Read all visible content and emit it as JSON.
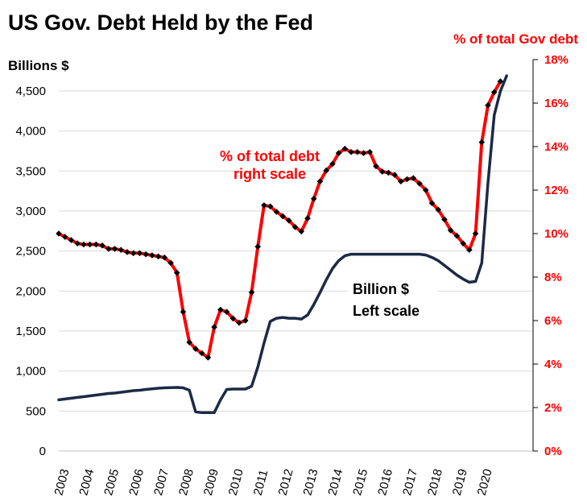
{
  "chart_data": {
    "type": "line",
    "title": "US Gov. Debt Held by the Fed",
    "ylabel_left": "Billions $",
    "ylabel_right": "% of total Gov debt",
    "ylim_left": [
      0,
      4500
    ],
    "yticks_left": [
      "0",
      "500",
      "1,000",
      "1,500",
      "2,000",
      "2,500",
      "3,000",
      "3,500",
      "4,000",
      "4,500"
    ],
    "ylim_right": [
      0,
      18
    ],
    "yticks_right": [
      "0%",
      "2%",
      "4%",
      "6%",
      "8%",
      "10%",
      "12%",
      "14%",
      "16%",
      "18%"
    ],
    "xticks": [
      "2003",
      "2004",
      "2005",
      "2006",
      "2007",
      "2008",
      "2009",
      "2010",
      "2011",
      "2012",
      "2013",
      "2014",
      "2015",
      "2016",
      "2017",
      "2018",
      "2019",
      "2020"
    ],
    "grid": "horizontal",
    "annotations": [
      {
        "lines": [
          "% of total debt",
          "right scale"
        ],
        "series": "percent"
      },
      {
        "lines": [
          "Billion $",
          "Left scale"
        ],
        "series": "billions"
      }
    ],
    "colors": {
      "percent": "#ff0000",
      "billions": "#1b2a45",
      "markers": "#000000",
      "right_axis": "#ff0000"
    },
    "series": [
      {
        "axis": "left",
        "points": [
          [
            2003.0,
            640
          ],
          [
            2003.25,
            650
          ],
          [
            2003.5,
            660
          ],
          [
            2003.75,
            670
          ],
          [
            2004.0,
            680
          ],
          [
            2004.25,
            690
          ],
          [
            2004.5,
            700
          ],
          [
            2004.75,
            710
          ],
          [
            2005.0,
            720
          ],
          [
            2005.25,
            725
          ],
          [
            2005.5,
            735
          ],
          [
            2005.75,
            745
          ],
          [
            2006.0,
            755
          ],
          [
            2006.25,
            760
          ],
          [
            2006.5,
            770
          ],
          [
            2006.75,
            778
          ],
          [
            2007.0,
            785
          ],
          [
            2007.25,
            790
          ],
          [
            2007.5,
            793
          ],
          [
            2007.75,
            795
          ],
          [
            2008.0,
            790
          ],
          [
            2008.25,
            760
          ],
          [
            2008.5,
            490
          ],
          [
            2008.75,
            480
          ],
          [
            2009.0,
            480
          ],
          [
            2009.25,
            480
          ],
          [
            2009.5,
            640
          ],
          [
            2009.75,
            770
          ],
          [
            2010.0,
            775
          ],
          [
            2010.25,
            775
          ],
          [
            2010.5,
            775
          ],
          [
            2010.75,
            810
          ],
          [
            2011.0,
            1050
          ],
          [
            2011.25,
            1350
          ],
          [
            2011.5,
            1620
          ],
          [
            2011.75,
            1660
          ],
          [
            2012.0,
            1670
          ],
          [
            2012.25,
            1660
          ],
          [
            2012.5,
            1660
          ],
          [
            2012.75,
            1650
          ],
          [
            2013.0,
            1700
          ],
          [
            2013.25,
            1830
          ],
          [
            2013.5,
            1980
          ],
          [
            2013.75,
            2140
          ],
          [
            2014.0,
            2280
          ],
          [
            2014.25,
            2380
          ],
          [
            2014.5,
            2440
          ],
          [
            2014.75,
            2460
          ],
          [
            2015.0,
            2460
          ],
          [
            2015.25,
            2460
          ],
          [
            2015.5,
            2460
          ],
          [
            2015.75,
            2460
          ],
          [
            2016.0,
            2460
          ],
          [
            2016.25,
            2460
          ],
          [
            2016.5,
            2460
          ],
          [
            2016.75,
            2460
          ],
          [
            2017.0,
            2460
          ],
          [
            2017.25,
            2460
          ],
          [
            2017.5,
            2460
          ],
          [
            2017.75,
            2450
          ],
          [
            2018.0,
            2420
          ],
          [
            2018.25,
            2380
          ],
          [
            2018.5,
            2320
          ],
          [
            2018.75,
            2260
          ],
          [
            2019.0,
            2200
          ],
          [
            2019.25,
            2150
          ],
          [
            2019.5,
            2110
          ],
          [
            2019.75,
            2120
          ],
          [
            2020.0,
            2350
          ],
          [
            2020.25,
            3350
          ],
          [
            2020.5,
            4200
          ],
          [
            2020.75,
            4500
          ],
          [
            2021.0,
            4690
          ]
        ]
      },
      {
        "axis": "right",
        "markers": true,
        "points": [
          [
            2003.0,
            10.0
          ],
          [
            2003.25,
            9.85
          ],
          [
            2003.5,
            9.7
          ],
          [
            2003.75,
            9.55
          ],
          [
            2004.0,
            9.5
          ],
          [
            2004.25,
            9.5
          ],
          [
            2004.5,
            9.5
          ],
          [
            2004.75,
            9.45
          ],
          [
            2005.0,
            9.3
          ],
          [
            2005.25,
            9.3
          ],
          [
            2005.5,
            9.25
          ],
          [
            2005.75,
            9.15
          ],
          [
            2006.0,
            9.1
          ],
          [
            2006.25,
            9.1
          ],
          [
            2006.5,
            9.05
          ],
          [
            2006.75,
            9.0
          ],
          [
            2007.0,
            8.95
          ],
          [
            2007.25,
            8.9
          ],
          [
            2007.5,
            8.65
          ],
          [
            2007.75,
            8.2
          ],
          [
            2008.0,
            6.4
          ],
          [
            2008.25,
            5.0
          ],
          [
            2008.5,
            4.7
          ],
          [
            2008.75,
            4.5
          ],
          [
            2009.0,
            4.3
          ],
          [
            2009.25,
            5.7
          ],
          [
            2009.5,
            6.5
          ],
          [
            2009.75,
            6.4
          ],
          [
            2010.0,
            6.1
          ],
          [
            2010.25,
            5.9
          ],
          [
            2010.5,
            6.0
          ],
          [
            2010.75,
            7.3
          ],
          [
            2011.0,
            9.4
          ],
          [
            2011.25,
            11.3
          ],
          [
            2011.5,
            11.25
          ],
          [
            2011.75,
            11.0
          ],
          [
            2012.0,
            10.8
          ],
          [
            2012.25,
            10.6
          ],
          [
            2012.5,
            10.3
          ],
          [
            2012.75,
            10.1
          ],
          [
            2013.0,
            10.7
          ],
          [
            2013.25,
            11.6
          ],
          [
            2013.5,
            12.4
          ],
          [
            2013.75,
            12.9
          ],
          [
            2014.0,
            13.2
          ],
          [
            2014.25,
            13.7
          ],
          [
            2014.5,
            13.9
          ],
          [
            2014.75,
            13.75
          ],
          [
            2015.0,
            13.75
          ],
          [
            2015.25,
            13.7
          ],
          [
            2015.5,
            13.75
          ],
          [
            2015.75,
            13.1
          ],
          [
            2016.0,
            12.85
          ],
          [
            2016.25,
            12.8
          ],
          [
            2016.5,
            12.7
          ],
          [
            2016.75,
            12.4
          ],
          [
            2017.0,
            12.5
          ],
          [
            2017.25,
            12.55
          ],
          [
            2017.5,
            12.3
          ],
          [
            2017.75,
            12.0
          ],
          [
            2018.0,
            11.4
          ],
          [
            2018.25,
            11.1
          ],
          [
            2018.5,
            10.65
          ],
          [
            2018.75,
            10.15
          ],
          [
            2019.0,
            9.9
          ],
          [
            2019.25,
            9.55
          ],
          [
            2019.5,
            9.25
          ],
          [
            2019.75,
            10.0
          ],
          [
            2020.0,
            14.2
          ],
          [
            2020.25,
            15.9
          ],
          [
            2020.5,
            16.5
          ],
          [
            2020.75,
            17.0
          ]
        ]
      }
    ]
  }
}
